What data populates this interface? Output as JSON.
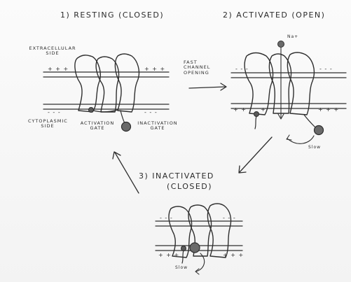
{
  "titles": {
    "resting": "1) RESTING (CLOSED)",
    "activated": "2) ACTIVATED (OPEN)",
    "inactivated_line1": "3) INACTIVATED",
    "inactivated_line2": "(CLOSED)"
  },
  "labels": {
    "extracellular": "EXTRACELLULAR SIDE",
    "cytoplasmic": "CYTOPLASMIC SIDE",
    "activation_gate": "ACTIVATION GATE",
    "inactivation_gate": "INACTIVATION GATE",
    "fast_line1": "FAST",
    "fast_line2": "CHANNEL",
    "fast_line3": "OPENING",
    "slow_activated": "Slow",
    "slow_inactivated": "Slow",
    "sodium": "Na+"
  },
  "charges": {
    "plus": "+ + +",
    "minus": "- - -",
    "plus_short": "+ +",
    "plus_single": "+"
  }
}
